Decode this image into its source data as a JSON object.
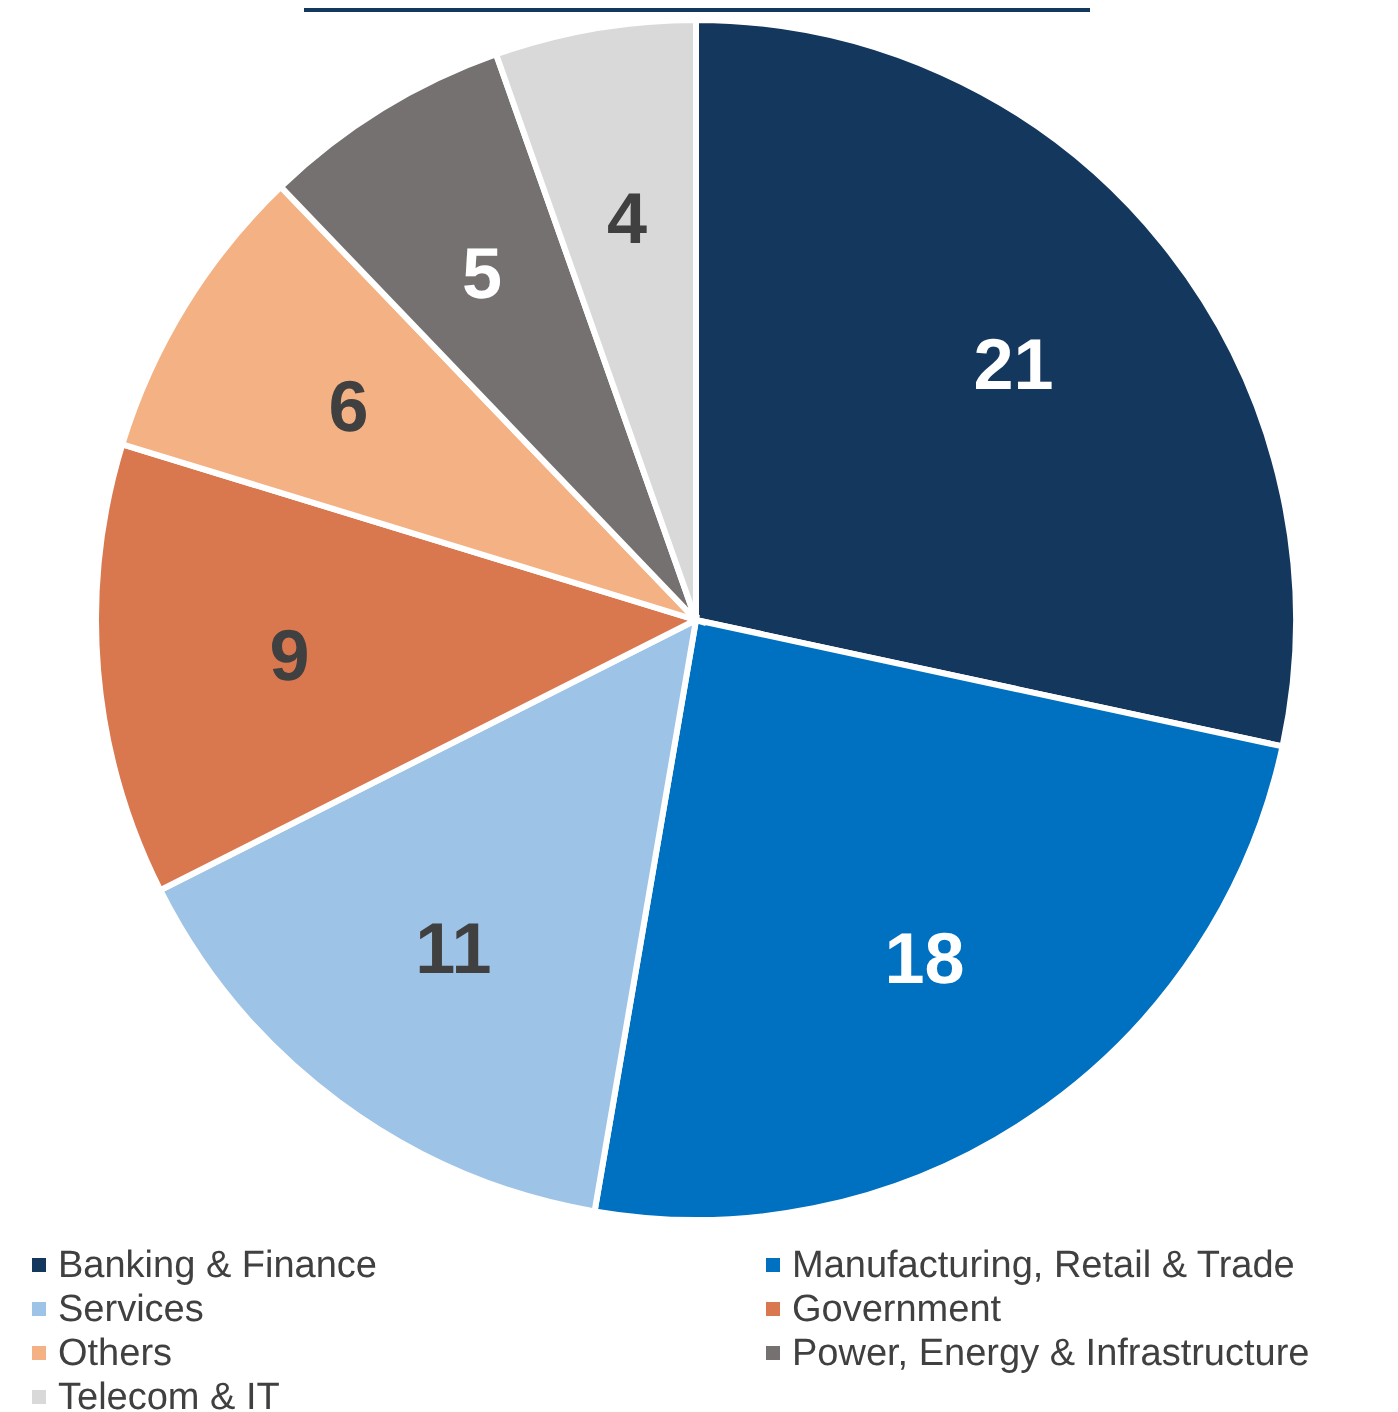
{
  "chart_data": {
    "type": "pie",
    "categories": [
      "Banking & Finance",
      "Manufacturing, Retail & Trade",
      "Services",
      "Government",
      "Others",
      "Power, Energy & Infrastructure",
      "Telecom & IT"
    ],
    "values": [
      21,
      18,
      11,
      9,
      6,
      5,
      4
    ],
    "colors": [
      "#14375e",
      "#0070c0",
      "#9dc3e6",
      "#d9774f",
      "#f4b183",
      "#767171",
      "#d9d9d9"
    ],
    "data_labels": true,
    "legend": "bottom"
  }
}
